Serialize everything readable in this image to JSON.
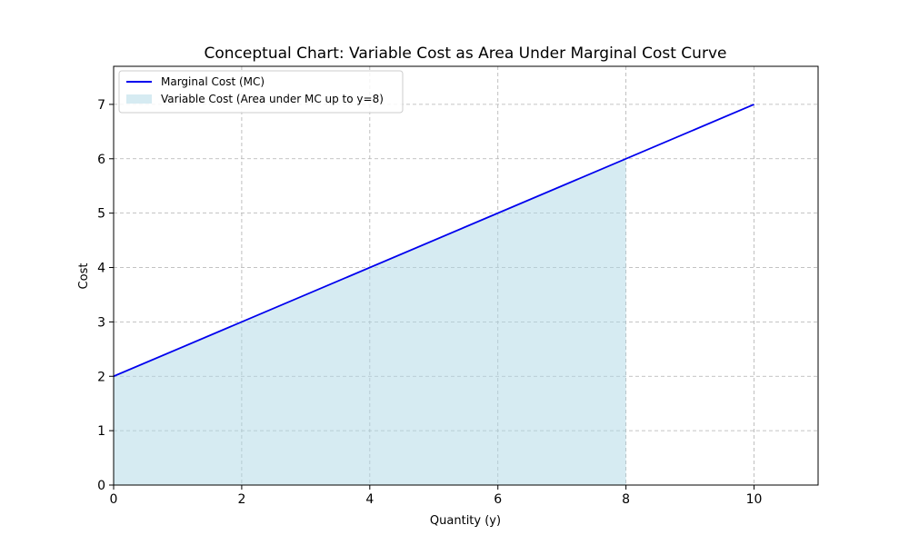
{
  "chart_data": {
    "type": "line",
    "title": "Conceptual Chart: Variable Cost as Area Under Marginal Cost Curve",
    "xlabel": "Quantity (y)",
    "ylabel": "Cost",
    "xlim": [
      0,
      11
    ],
    "ylim": [
      0,
      7.7
    ],
    "x_ticks": [
      "0",
      "2",
      "4",
      "6",
      "8",
      "10"
    ],
    "y_ticks": [
      "0",
      "1",
      "2",
      "3",
      "4",
      "5",
      "6",
      "7"
    ],
    "grid": true,
    "legend_position": "top-left",
    "series": [
      {
        "name": "Marginal Cost (MC)",
        "type": "line",
        "color": "#0000ee",
        "x": [
          0,
          10
        ],
        "y": [
          2,
          7
        ]
      },
      {
        "name": "Variable Cost (Area under MC up to y=8)",
        "type": "area",
        "color": "#add8e6",
        "x": [
          0,
          8
        ],
        "y": [
          2,
          6
        ]
      }
    ]
  }
}
